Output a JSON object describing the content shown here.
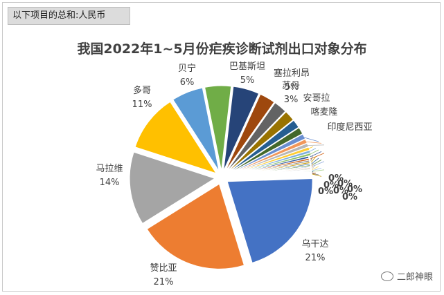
{
  "filter_label": "以下项目的总和:人民币",
  "watermark": {
    "text": "二郎神眼",
    "icon": "wechat-icon"
  },
  "chart_data": {
    "type": "pie",
    "title": "我国2022年1~5月份疟疾诊断试剂出口对象分布",
    "slices": [
      {
        "label": "乌干达",
        "pct_text": "21%",
        "value": 21,
        "color": "#4472C4"
      },
      {
        "label": "赞比亚",
        "pct_text": "21%",
        "value": 21,
        "color": "#ED7D31"
      },
      {
        "label": "马拉维",
        "pct_text": "14%",
        "value": 14,
        "color": "#A5A5A5"
      },
      {
        "label": "多哥",
        "pct_text": "11%",
        "value": 11,
        "color": "#FFC000"
      },
      {
        "label": "贝宁",
        "pct_text": "6%",
        "value": 6,
        "color": "#5B9BD5"
      },
      {
        "label": "巴基斯坦",
        "pct_text": "5%",
        "value": 5,
        "color": "#70AD47"
      },
      {
        "label": "塞拉利昂",
        "pct_text": "5%",
        "value": 5,
        "color": "#264478"
      },
      {
        "label": "苏丹",
        "pct_text": "3%",
        "value": 3,
        "color": "#9E480E"
      },
      {
        "label": "安哥拉",
        "pct_text": "",
        "value": 2.5,
        "color": "#636363"
      },
      {
        "label": "喀麦隆",
        "pct_text": "",
        "value": 2,
        "color": "#997300"
      },
      {
        "label": "",
        "pct_text": "",
        "value": 1.6,
        "color": "#255E91"
      },
      {
        "label": "印度尼西亚",
        "pct_text": "",
        "value": 1.3,
        "color": "#43682B"
      },
      {
        "label": "",
        "pct_text": "",
        "value": 1.0,
        "color": "#698ED0"
      },
      {
        "label": "",
        "pct_text": "",
        "value": 0.8,
        "color": "#F1975A"
      },
      {
        "label": "",
        "pct_text": "",
        "value": 0.7,
        "color": "#B7B7B7"
      },
      {
        "label": "",
        "pct_text": "",
        "value": 0.6,
        "color": "#FFCD33"
      },
      {
        "label": "",
        "pct_text": "",
        "value": 0.5,
        "color": "#7CAFDD"
      },
      {
        "label": "",
        "pct_text": "",
        "value": 0.45,
        "color": "#8CC168"
      },
      {
        "label": "",
        "pct_text": "",
        "value": 0.4,
        "color": "#335AA1"
      },
      {
        "label": "",
        "pct_text": "",
        "value": 0.35,
        "color": "#D26012"
      },
      {
        "label": "",
        "pct_text": "",
        "value": 0.3,
        "color": "#848484"
      },
      {
        "label": "",
        "pct_text": "",
        "value": 0.3,
        "color": "#CC9A00"
      },
      {
        "label": "",
        "pct_text": "",
        "value": 0.25,
        "color": "#3E75A6"
      },
      {
        "label": "",
        "pct_text": "",
        "value": 0.25,
        "color": "#5A8A39"
      },
      {
        "label": "",
        "pct_text": "",
        "value": 0.2,
        "color": "#8FAADC"
      },
      {
        "label": "",
        "pct_text": "",
        "value": 0.2,
        "color": "#F4B183"
      },
      {
        "label": "",
        "pct_text": "",
        "value": 0.2,
        "color": "#C9C9C9"
      },
      {
        "label": "",
        "pct_text": "",
        "value": 0.15,
        "color": "#FFD966"
      },
      {
        "label": "",
        "pct_text": "",
        "value": 0.15,
        "color": "#9DC3E6"
      },
      {
        "label": "",
        "pct_text": "",
        "value": 0.15,
        "color": "#A9D18E"
      },
      {
        "label": "",
        "pct_text": "",
        "value": 0.12,
        "color": "#2F5597"
      },
      {
        "label": "",
        "pct_text": "",
        "value": 0.12,
        "color": "#C55A11"
      },
      {
        "label": "",
        "pct_text": "",
        "value": 0.1,
        "color": "#7F7F7F"
      },
      {
        "label": "",
        "pct_text": "",
        "value": 0.1,
        "color": "#BF9000"
      }
    ],
    "cluster_text": "0%",
    "legend": "none"
  }
}
